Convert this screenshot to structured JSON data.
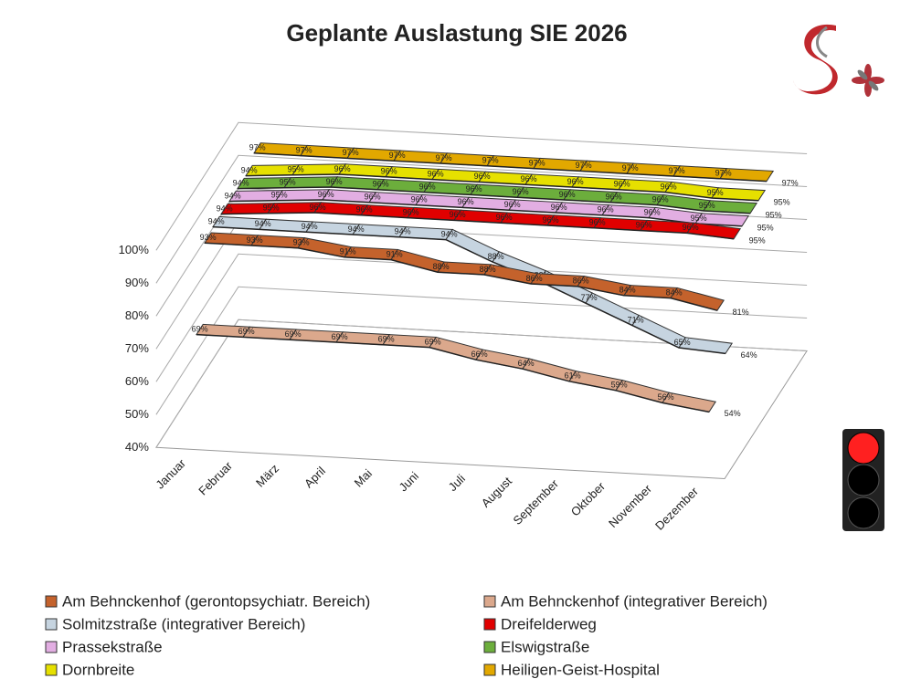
{
  "chart_data": {
    "type": "line3d",
    "title": "Geplante Auslastung SIE 2026",
    "categories": [
      "Januar",
      "Februar",
      "März",
      "April",
      "Mai",
      "Juni",
      "Juli",
      "August",
      "September",
      "Oktober",
      "November",
      "Dezember"
    ],
    "ylim": [
      40,
      100
    ],
    "yticks": [
      {
        "value": 40,
        "label": "40%"
      },
      {
        "value": 50,
        "label": "50%"
      },
      {
        "value": 60,
        "label": "60%"
      },
      {
        "value": 70,
        "label": "70%"
      },
      {
        "value": 80,
        "label": "80%"
      },
      {
        "value": 90,
        "label": "90%"
      },
      {
        "value": 100,
        "label": "100%"
      }
    ],
    "grid": true,
    "series": [
      {
        "name": "Am Behnckenhof (gerontopsychiatr. Bereich)",
        "color": "#c4622c",
        "values": [
          93,
          93,
          93,
          91,
          91,
          88,
          88,
          86,
          86,
          84,
          84,
          81
        ],
        "value_labels": [
          "93%",
          "93%",
          "93%",
          "91%",
          "91%",
          "88%",
          "88%",
          "86%",
          "86%",
          "84%",
          "84%",
          "81%"
        ]
      },
      {
        "name": "Am Behnckenhof (integrativer Bereich)",
        "color": "#dba88c",
        "values": [
          69,
          69,
          69,
          69,
          69,
          69,
          66,
          64,
          61,
          59,
          56,
          54
        ],
        "value_labels": [
          "69%",
          "69%",
          "69%",
          "69%",
          "69%",
          "69%",
          "66%",
          "64%",
          "61%",
          "59%",
          "56%",
          "54%"
        ]
      },
      {
        "name": "Solmitzstraße (integrativer Bereich)",
        "color": "#c6d4e0",
        "values": [
          94,
          94,
          94,
          94,
          94,
          94,
          88,
          83,
          77,
          71,
          65,
          64
        ],
        "value_labels": [
          "94%",
          "94%",
          "94%",
          "94%",
          "94%",
          "94%",
          "88%",
          "83%",
          "77%",
          "71%",
          "65%",
          "64%"
        ]
      },
      {
        "name": "Dreifelderweg",
        "color": "#e00000",
        "values": [
          94,
          95,
          96,
          96,
          96,
          96,
          96,
          96,
          96,
          96,
          96,
          95
        ],
        "value_labels": [
          "94%",
          "95%",
          "96%",
          "96%",
          "96%",
          "96%",
          "96%",
          "96%",
          "96%",
          "96%",
          "96%",
          "95%"
        ]
      },
      {
        "name": "Prassekstraße",
        "color": "#e2aee2",
        "values": [
          94,
          95,
          96,
          96,
          96,
          96,
          96,
          96,
          96,
          96,
          95,
          95
        ],
        "value_labels": [
          "94%",
          "95%",
          "96%",
          "96%",
          "96%",
          "96%",
          "96%",
          "96%",
          "96%",
          "96%",
          "95%",
          "95%"
        ]
      },
      {
        "name": "Elswigstraße",
        "color": "#6cae3c",
        "values": [
          94,
          95,
          96,
          96,
          96,
          96,
          96,
          96,
          96,
          96,
          95,
          95
        ],
        "value_labels": [
          "94%",
          "95%",
          "96%",
          "96%",
          "96%",
          "96%",
          "96%",
          "96%",
          "96%",
          "96%",
          "95%",
          "95%"
        ]
      },
      {
        "name": "Dornbreite",
        "color": "#e6e000",
        "values": [
          94,
          95,
          96,
          96,
          96,
          96,
          96,
          96,
          96,
          96,
          95,
          95
        ],
        "value_labels": [
          "94%",
          "95%",
          "96%",
          "96%",
          "96%",
          "96%",
          "96%",
          "96%",
          "96%",
          "96%",
          "95%",
          "95%"
        ]
      },
      {
        "name": "Heiligen-Geist-Hospital",
        "color": "#e2a800",
        "values": [
          97,
          97,
          97,
          97,
          97,
          97,
          97,
          97,
          97,
          97,
          97,
          97
        ],
        "value_labels": [
          "97%",
          "97%",
          "97%",
          "97%",
          "97%",
          "97%",
          "97%",
          "97%",
          "97%",
          "97%",
          "97%",
          "97%"
        ]
      }
    ]
  }
}
